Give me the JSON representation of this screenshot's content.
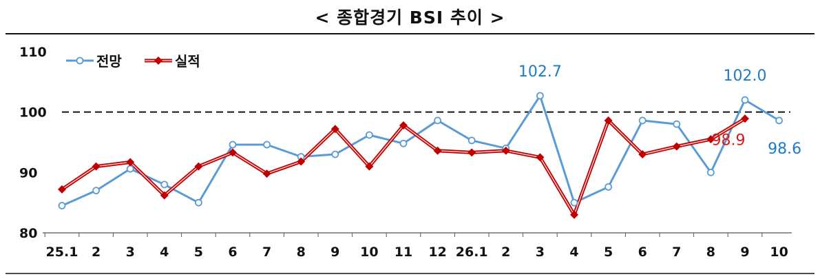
{
  "chart_data": {
    "type": "line",
    "title": "< 종합경기 BSI 추이 >",
    "categories": [
      "25.1",
      "2",
      "3",
      "4",
      "5",
      "6",
      "7",
      "8",
      "9",
      "10",
      "11",
      "12",
      "26.1",
      "2",
      "3",
      "4",
      "5",
      "6",
      "7",
      "8",
      "9",
      "10"
    ],
    "ylim": [
      80,
      110
    ],
    "yticks": [
      80,
      90,
      100,
      110
    ],
    "reference_line": 100,
    "legend_position": "top-left",
    "series": [
      {
        "name": "전망",
        "color": "#5b9bd5",
        "marker": "circle",
        "values": [
          84.5,
          87.0,
          90.6,
          88.0,
          85.0,
          94.6,
          94.6,
          92.6,
          93.0,
          96.2,
          94.8,
          98.6,
          95.3,
          94.0,
          102.7,
          85.0,
          87.6,
          98.6,
          98.0,
          90.0,
          102.0,
          98.6
        ]
      },
      {
        "name": "실적",
        "color": "#c00000",
        "marker": "diamond",
        "values": [
          87.2,
          91.0,
          91.7,
          86.2,
          91.0,
          93.3,
          89.8,
          91.8,
          97.2,
          91.0,
          97.8,
          93.6,
          93.3,
          93.6,
          92.5,
          83.0,
          98.6,
          93.0,
          94.3,
          95.5,
          98.9,
          null
        ]
      }
    ],
    "data_labels": [
      {
        "series": 0,
        "index": 14,
        "text": "102.7",
        "color": "#1f7bc6"
      },
      {
        "series": 0,
        "index": 20,
        "text": "102.0",
        "color": "#1f7bc6"
      },
      {
        "series": 1,
        "index": 20,
        "text": "98.9",
        "color": "#d7191c"
      },
      {
        "series": 0,
        "index": 21,
        "text": "98.6",
        "color": "#1f7bc6"
      }
    ]
  }
}
